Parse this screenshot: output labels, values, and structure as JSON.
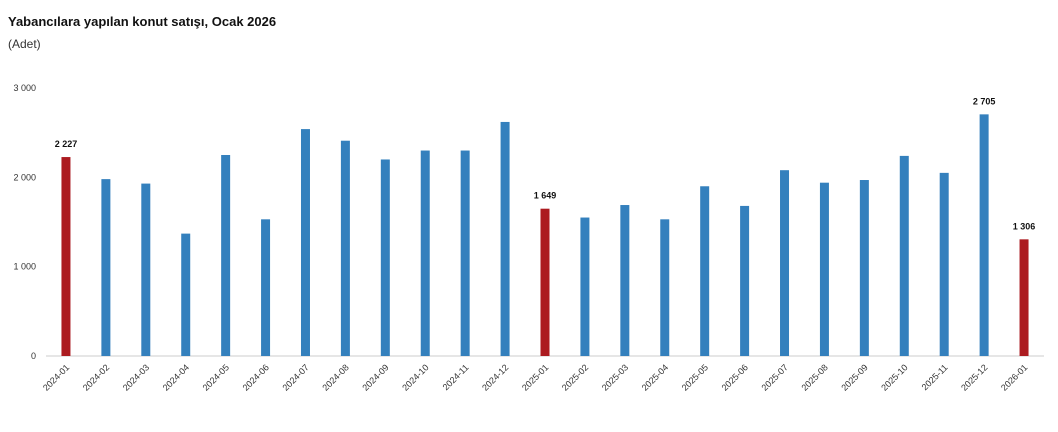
{
  "chart_data": {
    "type": "bar",
    "title": "Yabancılara yapılan konut satışı, Ocak 2026",
    "subtitle": "(Adet)",
    "categories": [
      "2024-01",
      "2024-02",
      "2024-03",
      "2024-04",
      "2024-05",
      "2024-06",
      "2024-07",
      "2024-08",
      "2024-09",
      "2024-10",
      "2024-11",
      "2024-12",
      "2025-01",
      "2025-02",
      "2025-03",
      "2025-04",
      "2025-05",
      "2025-06",
      "2025-07",
      "2025-08",
      "2025-09",
      "2025-10",
      "2025-11",
      "2025-12",
      "2026-01"
    ],
    "values": [
      2227,
      1980,
      1930,
      1370,
      2250,
      1530,
      2540,
      2410,
      2200,
      2300,
      2300,
      2620,
      1649,
      1550,
      1690,
      1530,
      1900,
      1680,
      2080,
      1940,
      1970,
      2240,
      2050,
      2705,
      1306
    ],
    "value_labels": [
      "2 227",
      null,
      null,
      null,
      null,
      null,
      null,
      null,
      null,
      null,
      null,
      null,
      "1 649",
      null,
      null,
      null,
      null,
      null,
      null,
      null,
      null,
      null,
      null,
      "2 705",
      "1 306"
    ],
    "colors": [
      "#ac1b20",
      "#3480bd",
      "#3480bd",
      "#3480bd",
      "#3480bd",
      "#3480bd",
      "#3480bd",
      "#3480bd",
      "#3480bd",
      "#3480bd",
      "#3480bd",
      "#3480bd",
      "#ac1b20",
      "#3480bd",
      "#3480bd",
      "#3480bd",
      "#3480bd",
      "#3480bd",
      "#3480bd",
      "#3480bd",
      "#3480bd",
      "#3480bd",
      "#3480bd",
      "#3480bd",
      "#ac1b20"
    ],
    "ylim": [
      0,
      3000
    ],
    "yticks": [
      0,
      {
        "value": 1000,
        "label": "1 000"
      },
      {
        "value": 2000,
        "label": "2 000"
      },
      {
        "value": 3000,
        "label": "3 000"
      }
    ],
    "grid": false
  }
}
